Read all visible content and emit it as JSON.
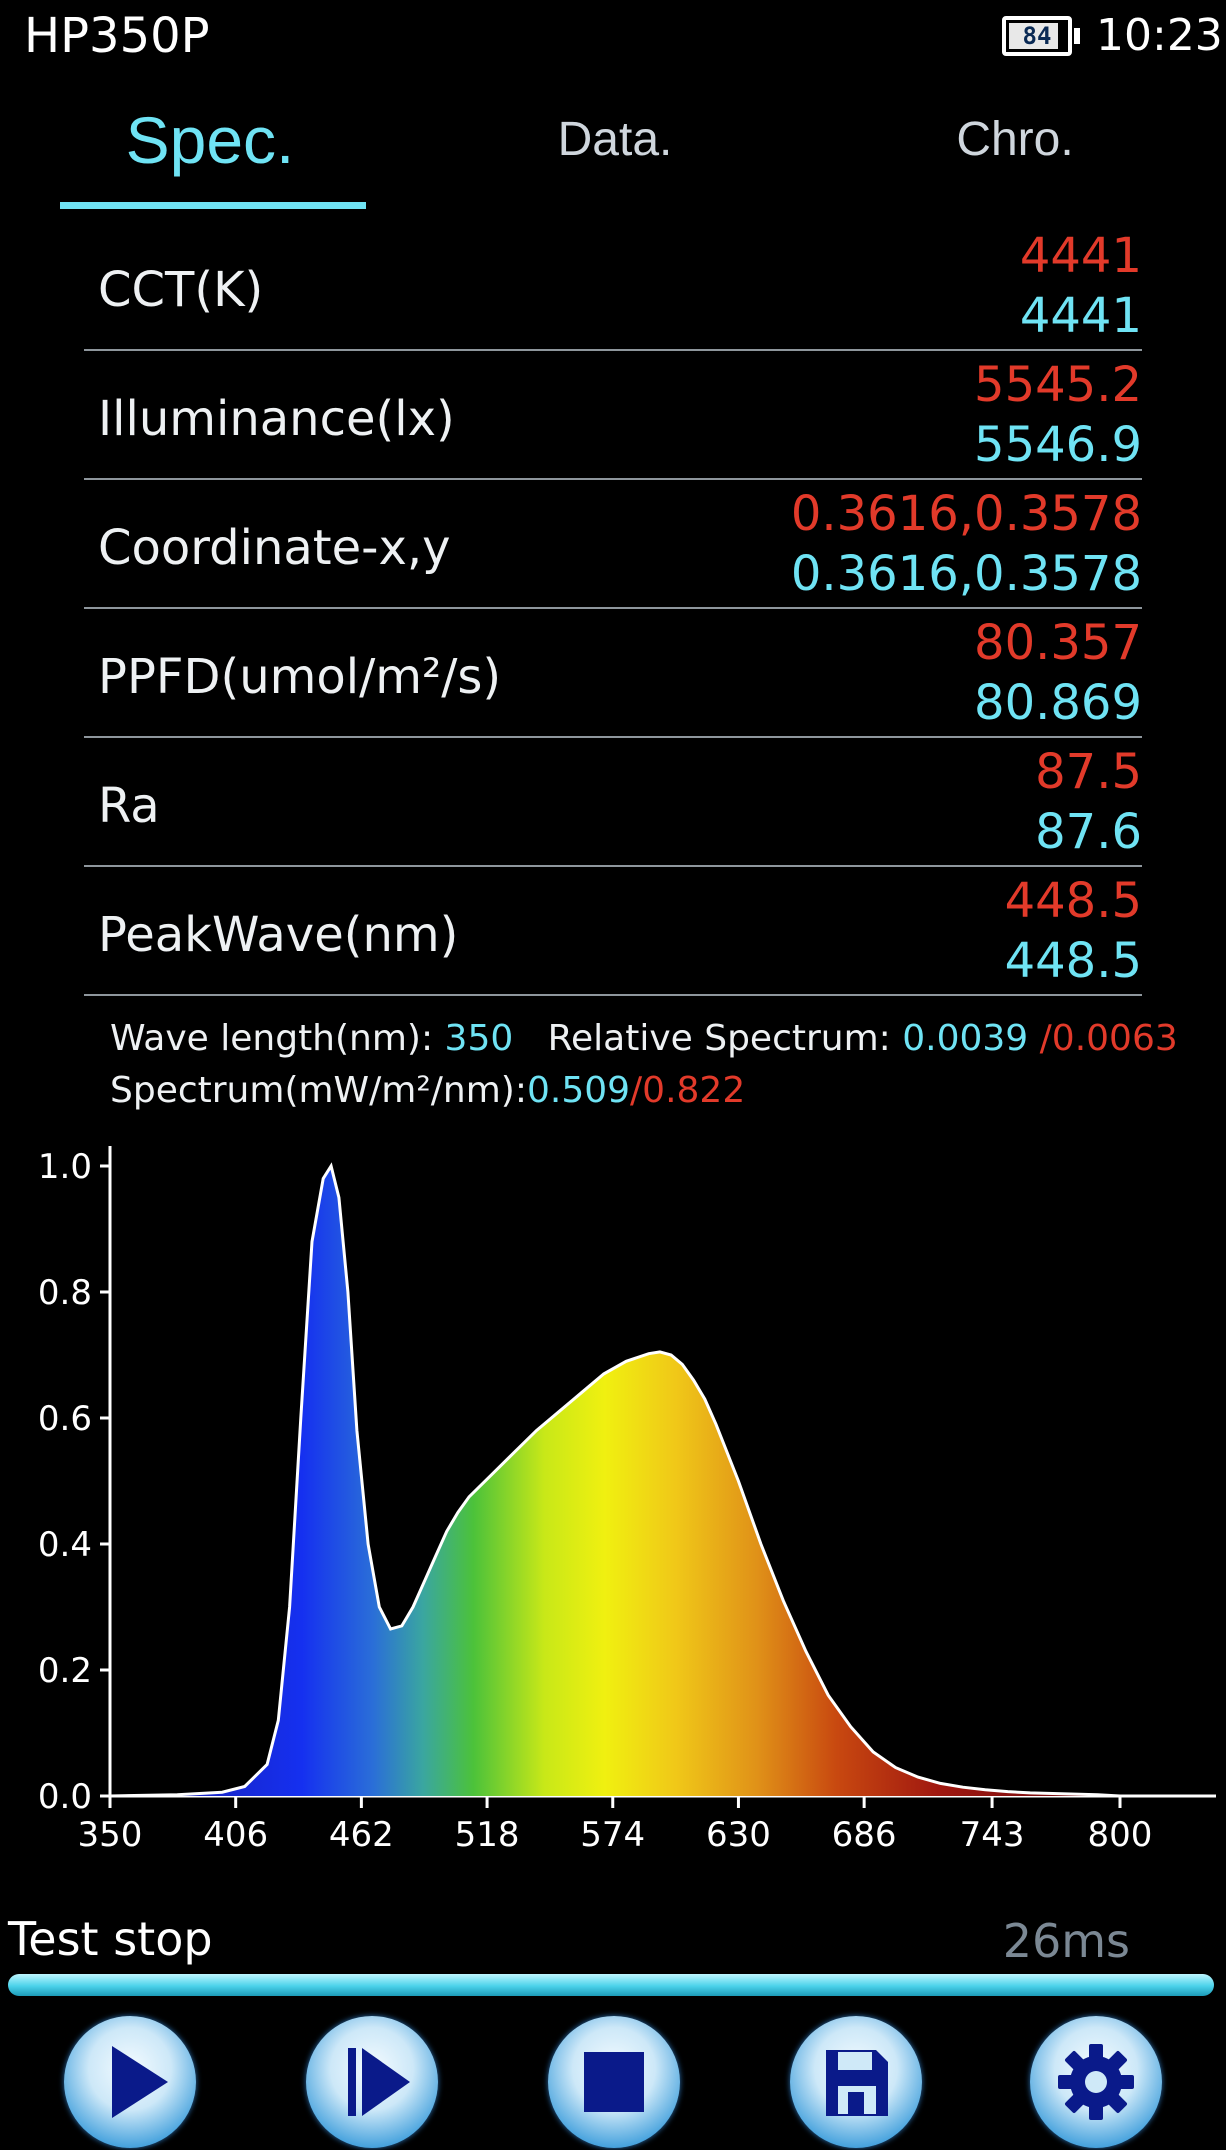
{
  "status_bar": {
    "app_title": "HP350P",
    "battery_percent": "84",
    "battery_level": 0.84,
    "time": "10:23"
  },
  "tabs": [
    {
      "label": "Spec.",
      "active": true
    },
    {
      "label": "Data.",
      "active": false
    },
    {
      "label": "Chro.",
      "active": false
    }
  ],
  "metrics": [
    {
      "label": "CCT(K)",
      "value_red": "4441",
      "value_cyan": "4441"
    },
    {
      "label": "Illuminance(lx)",
      "value_red": "5545.2",
      "value_cyan": "5546.9"
    },
    {
      "label": "Coordinate-x,y",
      "value_red": "0.3616,0.3578",
      "value_cyan": "0.3616,0.3578"
    },
    {
      "label": "PPFD(umol/m²/s)",
      "value_red": "80.357",
      "value_cyan": "80.869"
    },
    {
      "label": "Ra",
      "value_red": "87.5",
      "value_cyan": "87.6"
    },
    {
      "label": "PeakWave(nm)",
      "value_red": "448.5",
      "value_cyan": "448.5"
    }
  ],
  "readout": {
    "wavelength_label": "Wave length(nm): ",
    "wavelength_value": "350",
    "relative_label": "Relative Spectrum: ",
    "relative_value_cyan": "0.0039",
    "relative_value_red": "/0.0063",
    "spectrum_label": "Spectrum(mW/m²/nm):",
    "spectrum_value_cyan": "0.509",
    "spectrum_value_red": "/0.822"
  },
  "chart_data": {
    "type": "area",
    "xlim": [
      350,
      800
    ],
    "ylim": [
      0,
      1.0
    ],
    "x_tick_labels": [
      "350",
      "406",
      "462",
      "518",
      "574",
      "630",
      "686",
      "743",
      "800"
    ],
    "y_tick_labels": [
      "0.0",
      "0.2",
      "0.4",
      "0.6",
      "0.8",
      "1.0"
    ],
    "grid": false,
    "x": [
      350,
      380,
      400,
      410,
      420,
      425,
      430,
      435,
      440,
      445,
      448.5,
      452,
      456,
      460,
      465,
      470,
      475,
      480,
      485,
      490,
      495,
      500,
      505,
      510,
      520,
      530,
      540,
      550,
      560,
      570,
      580,
      590,
      595,
      600,
      605,
      610,
      615,
      620,
      630,
      640,
      650,
      660,
      670,
      680,
      690,
      700,
      710,
      720,
      730,
      740,
      750,
      760,
      770,
      780,
      790,
      800
    ],
    "y": [
      0.0,
      0.002,
      0.006,
      0.015,
      0.05,
      0.12,
      0.3,
      0.6,
      0.88,
      0.98,
      1.0,
      0.95,
      0.8,
      0.58,
      0.4,
      0.3,
      0.265,
      0.27,
      0.3,
      0.34,
      0.38,
      0.42,
      0.45,
      0.475,
      0.51,
      0.545,
      0.58,
      0.61,
      0.64,
      0.67,
      0.69,
      0.702,
      0.705,
      0.7,
      0.685,
      0.66,
      0.63,
      0.59,
      0.5,
      0.4,
      0.31,
      0.23,
      0.16,
      0.11,
      0.07,
      0.045,
      0.03,
      0.02,
      0.014,
      0.01,
      0.007,
      0.005,
      0.004,
      0.003,
      0.002,
      0.0
    ]
  },
  "footer": {
    "status_text": "Test stop",
    "time_text": "26ms",
    "progress": 1.0
  },
  "buttons": [
    {
      "icon": "play-icon"
    },
    {
      "icon": "step-play-icon"
    },
    {
      "icon": "stop-icon"
    },
    {
      "icon": "save-icon"
    },
    {
      "icon": "gear-icon"
    }
  ],
  "colors": {
    "accent_cyan": "#6fe3f4",
    "value_red": "#e23a2a",
    "divider": "#8e969c"
  }
}
